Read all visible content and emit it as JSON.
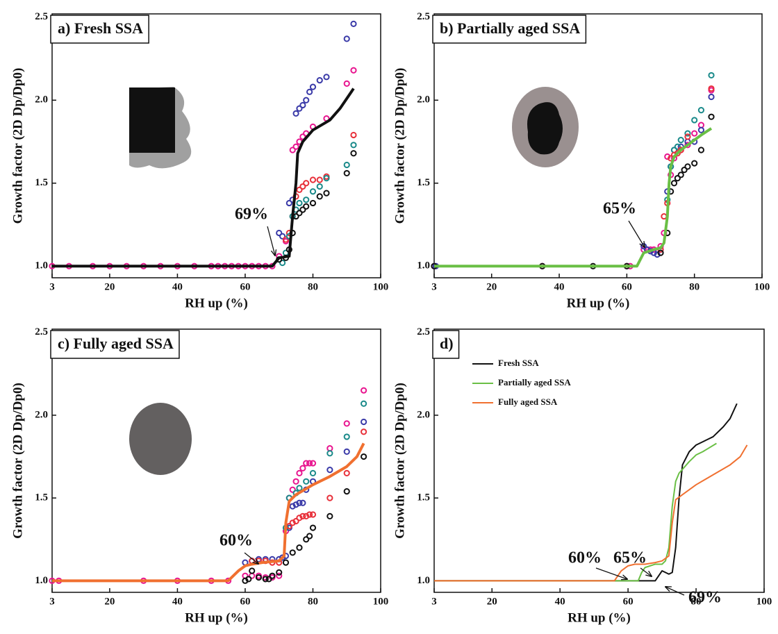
{
  "chart_data": [
    {
      "type": "scatter",
      "title": "a) Fresh SSA",
      "x_label": "RH up (%)",
      "y_label": "Growth factor (2D Dp/Dp0)",
      "xlim": [
        3,
        100
      ],
      "xticks": [
        3,
        20,
        40,
        60,
        80,
        100
      ],
      "ylim": [
        0.93,
        2.52
      ],
      "yticks": [
        {
          "value": 1,
          "label": "1.0"
        },
        {
          "value": 1.5,
          "label": "1.5"
        },
        {
          "value": 2,
          "label": "2.0"
        },
        {
          "value": 2.5,
          "label": "2.5"
        }
      ],
      "annotations": [
        "69%"
      ],
      "series": [
        {
          "color": "#e8158f",
          "x": [
            3,
            8,
            15,
            20,
            25,
            30,
            35,
            40,
            45,
            50,
            52,
            54,
            56,
            58,
            60,
            62,
            64,
            66,
            68,
            70,
            72,
            74,
            75,
            76,
            77,
            78,
            80,
            84,
            90,
            92
          ],
          "values": [
            1,
            1,
            1,
            1,
            1,
            1,
            1,
            1,
            1,
            1,
            1,
            1,
            1,
            1,
            1,
            1,
            1,
            1,
            1,
            1.06,
            1.15,
            1.7,
            1.72,
            1.75,
            1.78,
            1.8,
            1.84,
            1.89,
            2.1,
            2.18
          ]
        },
        {
          "color": "#3a3aa8",
          "x": [
            70,
            71,
            73,
            74,
            75,
            76,
            77,
            78,
            79,
            80,
            82,
            84,
            90,
            92
          ],
          "values": [
            1.2,
            1.18,
            1.38,
            1.4,
            1.92,
            1.95,
            1.97,
            2.0,
            2.05,
            2.08,
            2.12,
            2.14,
            2.37,
            2.46
          ]
        },
        {
          "color": "#e8303a",
          "x": [
            72,
            73,
            74,
            75,
            76,
            77,
            78,
            80,
            82,
            84,
            92
          ],
          "values": [
            1.16,
            1.2,
            1.3,
            1.42,
            1.46,
            1.48,
            1.5,
            1.52,
            1.52,
            1.54,
            1.79
          ]
        },
        {
          "color": "#1a8a8a",
          "x": [
            71,
            72,
            73,
            74,
            75,
            76,
            78,
            80,
            82,
            84,
            90,
            92
          ],
          "values": [
            1.02,
            1.08,
            1.18,
            1.3,
            1.34,
            1.38,
            1.4,
            1.45,
            1.48,
            1.53,
            1.61,
            1.73
          ]
        },
        {
          "color": "#111111",
          "x": [
            70,
            72,
            73,
            74,
            75,
            76,
            77,
            78,
            80,
            82,
            84,
            90,
            92
          ],
          "values": [
            1.04,
            1.05,
            1.1,
            1.2,
            1.3,
            1.32,
            1.34,
            1.36,
            1.38,
            1.42,
            1.44,
            1.56,
            1.68
          ]
        },
        {
          "type": "line",
          "color": "#111111",
          "x": [
            3,
            68,
            70,
            73,
            74,
            75,
            75.5,
            77,
            80,
            85,
            88,
            92
          ],
          "values": [
            1,
            1,
            1.05,
            1.06,
            1.3,
            1.5,
            1.68,
            1.75,
            1.82,
            1.88,
            1.95,
            2.07
          ]
        }
      ]
    },
    {
      "type": "scatter",
      "title": "b) Partially aged SSA",
      "x_label": "RH up (%)",
      "y_label": "Growth factor (2D Dp/Dp0)",
      "xlim": [
        3,
        100
      ],
      "xticks": [
        3,
        20,
        40,
        60,
        80,
        100
      ],
      "ylim": [
        0.93,
        2.52
      ],
      "yticks": [
        {
          "value": 1,
          "label": "1.0"
        },
        {
          "value": 1.5,
          "label": "1.5"
        },
        {
          "value": 2,
          "label": "2.0"
        },
        {
          "value": 2.5,
          "label": "2.5"
        }
      ],
      "annotations": [
        "65%"
      ],
      "series": [
        {
          "color": "#e8158f",
          "x": [
            3,
            35,
            60,
            61,
            65,
            66,
            67,
            68,
            70,
            71,
            72,
            73,
            74,
            76,
            78,
            80,
            82,
            85
          ],
          "values": [
            1,
            1,
            1,
            1,
            1.1,
            1.1,
            1.1,
            1.1,
            1.12,
            1.2,
            1.66,
            1.55,
            1.65,
            1.7,
            1.73,
            1.8,
            1.85,
            2.06
          ]
        },
        {
          "color": "#3a3aa8",
          "x": [
            3,
            3.5,
            65,
            66,
            67,
            68,
            69,
            70,
            72,
            73,
            74,
            76,
            78,
            80,
            82,
            85
          ],
          "values": [
            1,
            1,
            1.12,
            1.1,
            1.09,
            1.08,
            1.07,
            1.1,
            1.45,
            1.6,
            1.7,
            1.72,
            1.75,
            1.75,
            1.82,
            2.02
          ]
        },
        {
          "color": "#1a8a8a",
          "x": [
            72,
            73,
            74,
            75,
            76,
            78,
            80,
            82,
            85
          ],
          "values": [
            1.4,
            1.6,
            1.7,
            1.72,
            1.76,
            1.8,
            1.88,
            1.94,
            2.15
          ]
        },
        {
          "color": "#e8303a",
          "x": [
            70,
            71,
            72,
            73,
            74,
            75,
            76,
            78,
            85
          ],
          "values": [
            1.1,
            1.3,
            1.38,
            1.65,
            1.67,
            1.68,
            1.7,
            1.78,
            2.07
          ]
        },
        {
          "color": "#111111",
          "x": [
            3,
            35,
            50,
            60,
            70,
            72,
            73,
            74,
            75,
            76,
            77,
            78,
            80,
            82,
            85
          ],
          "values": [
            1,
            1,
            1,
            1,
            1.08,
            1.2,
            1.45,
            1.5,
            1.53,
            1.55,
            1.58,
            1.6,
            1.62,
            1.7,
            1.9
          ]
        },
        {
          "type": "line",
          "color": "#6abf45",
          "x": [
            3,
            60,
            63,
            65,
            68,
            70,
            71,
            72,
            72.5,
            73,
            74,
            76,
            78,
            80,
            82,
            85
          ],
          "values": [
            1,
            1,
            1,
            1.08,
            1.1,
            1.11,
            1.14,
            1.3,
            1.5,
            1.6,
            1.66,
            1.7,
            1.73,
            1.76,
            1.79,
            1.83
          ]
        }
      ]
    },
    {
      "type": "scatter",
      "title": "c) Fully aged SSA",
      "x_label": "RH up (%)",
      "y_label": "Growth factor (2D Dp/Dp0)",
      "xlim": [
        3,
        100
      ],
      "xticks": [
        3,
        20,
        40,
        60,
        80,
        100
      ],
      "ylim": [
        0.93,
        2.52
      ],
      "yticks": [
        {
          "value": 1,
          "label": "1.0"
        },
        {
          "value": 1.5,
          "label": "1.5"
        },
        {
          "value": 2,
          "label": "2.0"
        },
        {
          "value": 2.5,
          "label": "2.5"
        }
      ],
      "annotations": [
        "60%"
      ],
      "series": [
        {
          "color": "#e8158f",
          "x": [
            3,
            5,
            30,
            40,
            50,
            55,
            60,
            62,
            64,
            66,
            68,
            70,
            72,
            73,
            74,
            75,
            76,
            77,
            78,
            79,
            80,
            85,
            90,
            95
          ],
          "values": [
            1,
            1,
            1,
            1,
            1,
            1,
            1.03,
            1.03,
            1.03,
            1.02,
            1.02,
            1.03,
            1.3,
            1.5,
            1.55,
            1.6,
            1.65,
            1.68,
            1.71,
            1.71,
            1.71,
            1.8,
            1.95,
            2.15
          ]
        },
        {
          "color": "#3a3aa8",
          "x": [
            60,
            62,
            64,
            66,
            68,
            70,
            71,
            72,
            73,
            74,
            75,
            76,
            77,
            78,
            80,
            85,
            90,
            95
          ],
          "values": [
            1.11,
            1.12,
            1.13,
            1.13,
            1.13,
            1.13,
            1.14,
            1.15,
            1.32,
            1.45,
            1.46,
            1.47,
            1.47,
            1.55,
            1.6,
            1.67,
            1.78,
            1.96
          ]
        },
        {
          "color": "#1a8a8a",
          "x": [
            72,
            73,
            75,
            76,
            78,
            80,
            85,
            90,
            95
          ],
          "values": [
            1.32,
            1.5,
            1.53,
            1.56,
            1.6,
            1.65,
            1.77,
            1.87,
            2.07
          ]
        },
        {
          "color": "#e8303a",
          "x": [
            62,
            64,
            66,
            68,
            70,
            73,
            74,
            75,
            76,
            77,
            78,
            79,
            80,
            85,
            90,
            95
          ],
          "values": [
            1.12,
            1.12,
            1.12,
            1.11,
            1.11,
            1.33,
            1.35,
            1.36,
            1.38,
            1.39,
            1.39,
            1.4,
            1.4,
            1.5,
            1.65,
            1.9
          ]
        },
        {
          "color": "#111111",
          "x": [
            60,
            61,
            62,
            64,
            66,
            67,
            68,
            70,
            72,
            74,
            76,
            78,
            79,
            80,
            85,
            90,
            95
          ],
          "values": [
            1.0,
            1.01,
            1.06,
            1.02,
            1.01,
            1.01,
            1.03,
            1.05,
            1.11,
            1.17,
            1.2,
            1.25,
            1.27,
            1.32,
            1.39,
            1.54,
            1.75
          ]
        },
        {
          "type": "line",
          "color": "#f07030",
          "x": [
            3,
            55,
            58,
            60,
            62,
            65,
            70,
            71.5,
            72,
            73,
            75,
            80,
            85,
            90,
            93,
            95
          ],
          "values": [
            1,
            1,
            1.06,
            1.09,
            1.1,
            1.11,
            1.12,
            1.15,
            1.35,
            1.48,
            1.52,
            1.58,
            1.63,
            1.69,
            1.75,
            1.83
          ]
        }
      ]
    },
    {
      "type": "line",
      "title": "d)",
      "x_label": "RH up (%)",
      "y_label": "Growth factor (2D Dp/Dp0)",
      "xlim": [
        3,
        100
      ],
      "xticks": [
        3,
        20,
        40,
        60,
        80,
        100
      ],
      "ylim": [
        0.93,
        2.52
      ],
      "yticks": [
        {
          "value": 1,
          "label": "1.0"
        },
        {
          "value": 1.5,
          "label": "1.5"
        },
        {
          "value": 2,
          "label": "2.0"
        },
        {
          "value": 2.5,
          "label": "2.5"
        }
      ],
      "annotations": [
        "60%",
        "65%",
        "69%"
      ],
      "series": [
        {
          "name": "Fresh SSA",
          "color": "#111111",
          "x": [
            3,
            68,
            69,
            70,
            71,
            72,
            73,
            74,
            75,
            76,
            78,
            80,
            82,
            85,
            88,
            90,
            92
          ],
          "values": [
            1,
            1,
            1.03,
            1.06,
            1.05,
            1.04,
            1.05,
            1.2,
            1.5,
            1.7,
            1.78,
            1.82,
            1.84,
            1.87,
            1.93,
            1.98,
            2.07
          ]
        },
        {
          "name": "Partially aged SSA",
          "color": "#6abf45",
          "x": [
            3,
            63,
            64,
            65,
            68,
            70,
            71,
            72,
            73,
            74,
            75,
            78,
            80,
            82,
            86
          ],
          "values": [
            1,
            1,
            1.05,
            1.08,
            1.1,
            1.1,
            1.12,
            1.2,
            1.45,
            1.6,
            1.65,
            1.72,
            1.76,
            1.78,
            1.83
          ]
        },
        {
          "name": "Fully aged SSA",
          "color": "#f07030",
          "x": [
            3,
            56,
            58,
            60,
            62,
            65,
            68,
            70,
            72,
            73,
            74,
            76,
            80,
            85,
            90,
            93,
            95
          ],
          "values": [
            1,
            1,
            1.06,
            1.09,
            1.1,
            1.1,
            1.11,
            1.12,
            1.15,
            1.35,
            1.49,
            1.52,
            1.58,
            1.64,
            1.7,
            1.75,
            1.82
          ]
        }
      ]
    }
  ]
}
